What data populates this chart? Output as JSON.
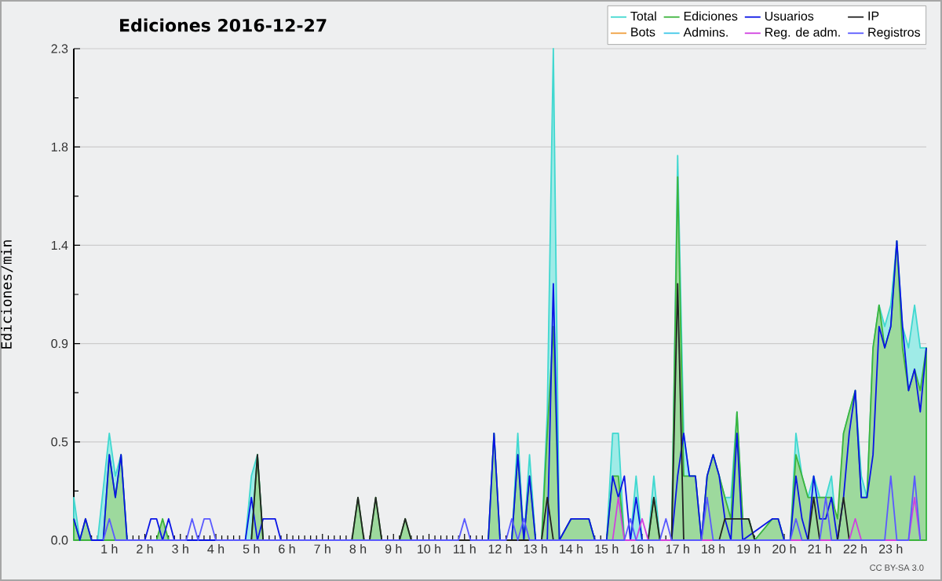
{
  "chart_data": {
    "type": "line",
    "title": "Ediciones 2016-12-27",
    "ylabel": "Ediciones/min",
    "annotations": [
      "CC BY-SA 3.0"
    ],
    "xlim": [
      0,
      24
    ],
    "ylim": [
      0,
      2.3
    ],
    "xticks": [
      {
        "value": 0,
        "label": null
      },
      {
        "value": 1,
        "label": "1 h"
      },
      {
        "value": 2,
        "label": "2 h"
      },
      {
        "value": 3,
        "label": "3 h"
      },
      {
        "value": 4,
        "label": "4 h"
      },
      {
        "value": 5,
        "label": "5 h"
      },
      {
        "value": 6,
        "label": "6 h"
      },
      {
        "value": 7,
        "label": "7 h"
      },
      {
        "value": 8,
        "label": "8 h"
      },
      {
        "value": 9,
        "label": "9 h"
      },
      {
        "value": 10,
        "label": "10 h"
      },
      {
        "value": 11,
        "label": "11 h"
      },
      {
        "value": 12,
        "label": "12 h"
      },
      {
        "value": 13,
        "label": "13 h"
      },
      {
        "value": 14,
        "label": "14 h"
      },
      {
        "value": 15,
        "label": "15 h"
      },
      {
        "value": 16,
        "label": "16 h"
      },
      {
        "value": 17,
        "label": "17 h"
      },
      {
        "value": 18,
        "label": "18 h"
      },
      {
        "value": 19,
        "label": "19 h"
      },
      {
        "value": 20,
        "label": "20 h"
      },
      {
        "value": 21,
        "label": "21 h"
      },
      {
        "value": 22,
        "label": "22 h"
      },
      {
        "value": 23,
        "label": "23 h"
      },
      {
        "value": 24,
        "label": null
      }
    ],
    "yticks": [
      {
        "value": 0,
        "label": "0.0"
      },
      {
        "value": 0.46,
        "label": "0.5"
      },
      {
        "value": 0.92,
        "label": "0.9"
      },
      {
        "value": 1.38,
        "label": "1.4"
      },
      {
        "value": 1.84,
        "label": "1.8"
      },
      {
        "value": 2.3,
        "label": "2.3"
      }
    ],
    "grid": "y",
    "legend": "top right",
    "series": [
      {
        "name": "Total",
        "type": "area",
        "color": "#40d8d0",
        "x": [
          0,
          0.17,
          0.67,
          1,
          1.17,
          1.33,
          1.5,
          4.83,
          5,
          5.17,
          5.33,
          11.67,
          11.83,
          12,
          12.33,
          12.5,
          12.67,
          12.83,
          13,
          13.17,
          13.33,
          13.5,
          13.67,
          13.83,
          14,
          14.5,
          14.67,
          15,
          15.17,
          15.33,
          15.5,
          15.67,
          15.83,
          16,
          16.17,
          16.33,
          16.5,
          16.83,
          17,
          17.17,
          17.33,
          17.5,
          17.67,
          17.83,
          18,
          18.17,
          18.33,
          18.5,
          18.67,
          18.83,
          19,
          19.17,
          19.67,
          19.83,
          20,
          20.17,
          20.33,
          20.5,
          20.67,
          20.83,
          21,
          21.17,
          21.33,
          21.5,
          21.67,
          21.83,
          22,
          22.17,
          22.33,
          22.5,
          22.67,
          22.83,
          23,
          23.17,
          23.33,
          23.5,
          23.67,
          23.83,
          24
        ],
        "values": [
          0.2,
          0,
          0,
          0.5,
          0.3,
          0.4,
          0,
          0,
          0.3,
          0.4,
          0,
          0,
          0.5,
          0,
          0,
          0.5,
          0,
          0.4,
          0,
          0,
          0.6,
          2.3,
          0,
          0,
          0.1,
          0.1,
          0,
          0,
          0.5,
          0.5,
          0,
          0,
          0.3,
          0,
          0,
          0.3,
          0,
          0,
          1.8,
          0.5,
          0.3,
          0.3,
          0,
          0.3,
          0.4,
          0.3,
          0.2,
          0.2,
          0.6,
          0.1,
          0.1,
          0,
          0.1,
          0.1,
          0,
          0,
          0.5,
          0.3,
          0.2,
          0.3,
          0.2,
          0.2,
          0.3,
          0,
          0.5,
          0.6,
          0.7,
          0.3,
          0.2,
          0.9,
          1.1,
          1.0,
          1.1,
          1.4,
          1.0,
          0.9,
          1.1,
          0.9,
          0.9
        ]
      },
      {
        "name": "Ediciones",
        "type": "area",
        "color": "#3cb43c",
        "x": [
          0,
          0.17,
          0.33,
          0.5,
          0.83,
          1,
          1.17,
          1.33,
          1.5,
          2.33,
          2.5,
          2.67,
          5,
          5.17,
          5.33,
          7.83,
          8,
          8.17,
          8.33,
          8.5,
          8.67,
          9.17,
          9.33,
          9.5,
          11.67,
          11.83,
          12,
          12.33,
          12.5,
          12.67,
          12.83,
          13,
          13.17,
          13.33,
          13.5,
          13.67,
          14,
          14.5,
          14.67,
          15,
          15.17,
          15.33,
          15.5,
          16.17,
          16.33,
          16.5,
          16.83,
          17,
          17.17,
          17.33,
          17.5,
          17.67,
          17.83,
          18,
          18.17,
          18.33,
          18.5,
          18.67,
          18.83,
          19,
          19.17,
          19.67,
          19.83,
          20,
          20.17,
          20.33,
          20.5,
          20.67,
          20.83,
          21,
          21.17,
          21.33,
          21.5,
          21.67,
          21.83,
          22,
          22.17,
          22.33,
          22.5,
          22.67,
          22.83,
          23,
          23.17,
          23.33,
          23.5,
          23.67,
          23.83,
          24
        ],
        "values": [
          0.1,
          0,
          0.1,
          0,
          0,
          0.4,
          0.2,
          0.4,
          0,
          0,
          0.1,
          0,
          0,
          0.4,
          0,
          0,
          0.2,
          0,
          0,
          0.2,
          0,
          0,
          0.1,
          0,
          0,
          0.5,
          0,
          0,
          0.4,
          0,
          0.3,
          0,
          0,
          0.5,
          1.0,
          0,
          0.1,
          0.1,
          0,
          0,
          0.3,
          0.3,
          0,
          0,
          0.2,
          0,
          0,
          1.7,
          0.3,
          0.3,
          0.3,
          0,
          0.3,
          0.4,
          0.3,
          0.2,
          0.1,
          0.6,
          0.1,
          0.1,
          0,
          0.1,
          0.1,
          0,
          0,
          0.4,
          0.3,
          0.2,
          0.2,
          0.2,
          0.2,
          0.2,
          0.1,
          0.5,
          0.6,
          0.7,
          0.2,
          0.2,
          0.9,
          1.1,
          0.9,
          1.0,
          1.4,
          0.9,
          0.7,
          0.8,
          0.7,
          0.9
        ]
      },
      {
        "name": "Usuarios",
        "color": "#0a14e6",
        "x": [
          0,
          0.17,
          0.33,
          0.5,
          0.83,
          1,
          1.17,
          1.33,
          1.5,
          2,
          2.17,
          2.33,
          2.5,
          2.67,
          2.83,
          3,
          4.83,
          5,
          5.17,
          5.33,
          5.5,
          5.67,
          5.83,
          11.67,
          11.83,
          12,
          12.33,
          12.5,
          12.67,
          12.83,
          13,
          13.33,
          13.5,
          13.67,
          14,
          14.5,
          14.67,
          15,
          15.17,
          15.33,
          15.5,
          15.67,
          15.83,
          16,
          16.83,
          17,
          17.17,
          17.33,
          17.5,
          17.67,
          17.83,
          18,
          18.17,
          18.33,
          18.5,
          18.67,
          18.83,
          19.67,
          19.83,
          20,
          20.17,
          20.33,
          20.5,
          20.67,
          20.83,
          21,
          21.17,
          21.33,
          21.5,
          21.67,
          21.83,
          22,
          22.17,
          22.33,
          22.5,
          22.67,
          22.83,
          23,
          23.17,
          23.33,
          23.5,
          23.67,
          23.83,
          24
        ],
        "values": [
          0.1,
          0,
          0.1,
          0,
          0,
          0.4,
          0.2,
          0.4,
          0,
          0,
          0.1,
          0.1,
          0,
          0.1,
          0,
          0,
          0,
          0.2,
          0,
          0.1,
          0.1,
          0.1,
          0,
          0,
          0.5,
          0,
          0,
          0.4,
          0,
          0.3,
          0,
          0,
          1.2,
          0,
          0.1,
          0.1,
          0,
          0,
          0.3,
          0.2,
          0.3,
          0,
          0.2,
          0,
          0,
          0.3,
          0.5,
          0.3,
          0.3,
          0,
          0.3,
          0.4,
          0.3,
          0.1,
          0,
          0.5,
          0,
          0.1,
          0.1,
          0,
          0,
          0.3,
          0.1,
          0,
          0.3,
          0.1,
          0.1,
          0.2,
          0,
          0.2,
          0.5,
          0.7,
          0.2,
          0.2,
          0.4,
          1.0,
          0.9,
          1.0,
          1.4,
          1.0,
          0.7,
          0.8,
          0.6,
          0.9
        ]
      },
      {
        "name": "IP",
        "color": "#222222",
        "x": [
          5,
          5.17,
          5.33,
          7.83,
          8,
          8.17,
          8.33,
          8.5,
          8.67,
          9.17,
          9.33,
          9.5,
          13.17,
          13.33,
          13.5,
          16.17,
          16.33,
          16.5,
          16.83,
          17,
          17.17,
          18.17,
          18.33,
          19,
          19.17,
          20.67,
          20.83,
          21,
          21.5,
          21.67,
          21.83
        ],
        "values": [
          0,
          0.4,
          0,
          0,
          0.2,
          0,
          0,
          0.2,
          0,
          0,
          0.1,
          0,
          0,
          0.2,
          0,
          0,
          0.2,
          0,
          0,
          1.2,
          0,
          0,
          0.1,
          0.1,
          0,
          0,
          0.2,
          0,
          0,
          0.2,
          0
        ]
      },
      {
        "name": "Bots",
        "color": "#f0a040"
      },
      {
        "name": "Admins.",
        "color": "#40c8e8"
      },
      {
        "name": "Reg. de adm.",
        "color": "#d040e0",
        "x": [
          15.17,
          15.33,
          15.5,
          15.83,
          16,
          16.17,
          21.83,
          22,
          22.17,
          23.5,
          23.67,
          23.83
        ],
        "values": [
          0,
          0.2,
          0,
          0,
          0.1,
          0,
          0,
          0.1,
          0,
          0,
          0.2,
          0
        ]
      },
      {
        "name": "Registros",
        "color": "#5a5aff",
        "x": [
          0.83,
          1,
          1.17,
          3.17,
          3.33,
          3.5,
          3.67,
          3.83,
          4,
          10.83,
          11,
          11.17,
          12.17,
          12.33,
          12.5,
          12.67,
          12.83,
          15.5,
          15.67,
          15.83,
          16.5,
          16.67,
          16.83,
          17.67,
          17.83,
          18,
          20.17,
          20.33,
          20.5,
          21,
          21.17,
          21.33,
          22.83,
          23,
          23.17,
          23.5,
          23.67,
          23.83
        ],
        "values": [
          0,
          0.1,
          0,
          0,
          0.1,
          0,
          0.1,
          0.1,
          0,
          0,
          0.1,
          0,
          0,
          0.1,
          0,
          0.1,
          0,
          0,
          0.1,
          0,
          0,
          0.1,
          0,
          0,
          0.2,
          0,
          0,
          0.1,
          0,
          0,
          0.2,
          0,
          0,
          0.3,
          0,
          0,
          0.3,
          0
        ]
      }
    ]
  }
}
